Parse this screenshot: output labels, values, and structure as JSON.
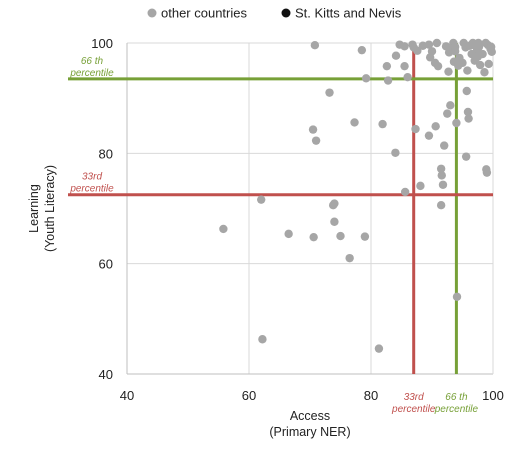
{
  "chart_data": {
    "type": "scatter",
    "xlabel": [
      "Access",
      "(Primary NER)"
    ],
    "ylabel": [
      "Learning",
      "(Youth Literacy)"
    ],
    "xlim": [
      40,
      100
    ],
    "ylim": [
      40,
      100
    ],
    "xticks": [
      40,
      60,
      80,
      100
    ],
    "yticks": [
      40,
      60,
      80,
      100
    ],
    "grid": "vertical and horizontal at major ticks",
    "legend_position": "top",
    "series": [
      {
        "name": "other countries",
        "color": "#a6a6a6",
        "points": [
          [
            55.8,
            66.3
          ],
          [
            62.0,
            71.6
          ],
          [
            62.2,
            46.3
          ],
          [
            66.5,
            65.4
          ],
          [
            70.5,
            84.3
          ],
          [
            71.0,
            82.3
          ],
          [
            70.6,
            64.8
          ],
          [
            70.8,
            99.6
          ],
          [
            73.2,
            91.0
          ],
          [
            73.8,
            70.6
          ],
          [
            74.0,
            70.9
          ],
          [
            74.0,
            67.6
          ],
          [
            75.0,
            65.0
          ],
          [
            76.5,
            61.0
          ],
          [
            77.3,
            85.6
          ],
          [
            78.5,
            98.7
          ],
          [
            79.0,
            64.9
          ],
          [
            79.2,
            93.6
          ],
          [
            81.3,
            44.6
          ],
          [
            81.9,
            85.3
          ],
          [
            82.6,
            95.8
          ],
          [
            82.8,
            93.2
          ],
          [
            84.0,
            80.1
          ],
          [
            84.1,
            97.7
          ],
          [
            84.7,
            99.7
          ],
          [
            85.5,
            99.4
          ],
          [
            85.5,
            95.8
          ],
          [
            85.6,
            73.0
          ],
          [
            86.0,
            93.8
          ],
          [
            86.8,
            99.7
          ],
          [
            87.0,
            99.2
          ],
          [
            87.3,
            84.4
          ],
          [
            87.6,
            98.6
          ],
          [
            88.1,
            74.1
          ],
          [
            88.5,
            99.5
          ],
          [
            89.5,
            99.7
          ],
          [
            89.5,
            83.2
          ],
          [
            90.0,
            98.5
          ],
          [
            90.5,
            96.4
          ],
          [
            90.6,
            84.9
          ],
          [
            90.8,
            100.0
          ],
          [
            91.5,
            70.6
          ],
          [
            91.5,
            77.2
          ],
          [
            91.6,
            76.0
          ],
          [
            91.8,
            74.3
          ],
          [
            92.0,
            81.4
          ],
          [
            92.3,
            99.4
          ],
          [
            92.5,
            87.2
          ],
          [
            92.7,
            94.8
          ],
          [
            92.8,
            98.3
          ],
          [
            93.3,
            98.9
          ],
          [
            93.5,
            100.0
          ],
          [
            93.8,
            99.3
          ],
          [
            93.6,
            96.6
          ],
          [
            93.8,
            98.5
          ],
          [
            94.1,
            54.0
          ],
          [
            94.0,
            85.5
          ],
          [
            94.5,
            97.3
          ],
          [
            95.0,
            96.4
          ],
          [
            95.2,
            100.0
          ],
          [
            95.5,
            99.2
          ],
          [
            95.6,
            79.4
          ],
          [
            95.8,
            95.0
          ],
          [
            95.7,
            91.3
          ],
          [
            95.9,
            87.5
          ],
          [
            96.0,
            86.3
          ],
          [
            96.2,
            99.5
          ],
          [
            96.7,
            100.0
          ],
          [
            97.0,
            96.8
          ],
          [
            97.2,
            99.4
          ],
          [
            97.3,
            98.4
          ],
          [
            97.7,
            99.3
          ],
          [
            97.5,
            97.5
          ],
          [
            97.9,
            96.0
          ],
          [
            98.3,
            98.0
          ],
          [
            98.6,
            94.7
          ],
          [
            98.8,
            100.0
          ],
          [
            99.0,
            76.5
          ],
          [
            99.2,
            99.6
          ],
          [
            99.6,
            98.9
          ],
          [
            99.7,
            99.3
          ],
          [
            99.8,
            98.4
          ],
          [
            98.9,
            77.1
          ],
          [
            94.3,
            95.9
          ],
          [
            91.0,
            95.8
          ],
          [
            89.7,
            97.4
          ],
          [
            96.5,
            98.0
          ],
          [
            97.6,
            100.0
          ],
          [
            99.3,
            96.2
          ],
          [
            93.0,
            88.7
          ]
        ]
      },
      {
        "name": "St. Kitts and Nevis",
        "color": "#111111",
        "points": []
      }
    ],
    "reference_lines": [
      {
        "axis": "x",
        "value": 87,
        "color": "#c0504d",
        "label": [
          "33rd",
          "percentile"
        ]
      },
      {
        "axis": "x",
        "value": 94,
        "color": "#77a037",
        "label": [
          "66 th",
          "percentile"
        ]
      },
      {
        "axis": "y",
        "value": 72.5,
        "color": "#c0504d",
        "label": [
          "33rd",
          "percentile"
        ]
      },
      {
        "axis": "y",
        "value": 93.5,
        "color": "#77a037",
        "label": [
          "66 th",
          "percentile"
        ]
      }
    ]
  }
}
